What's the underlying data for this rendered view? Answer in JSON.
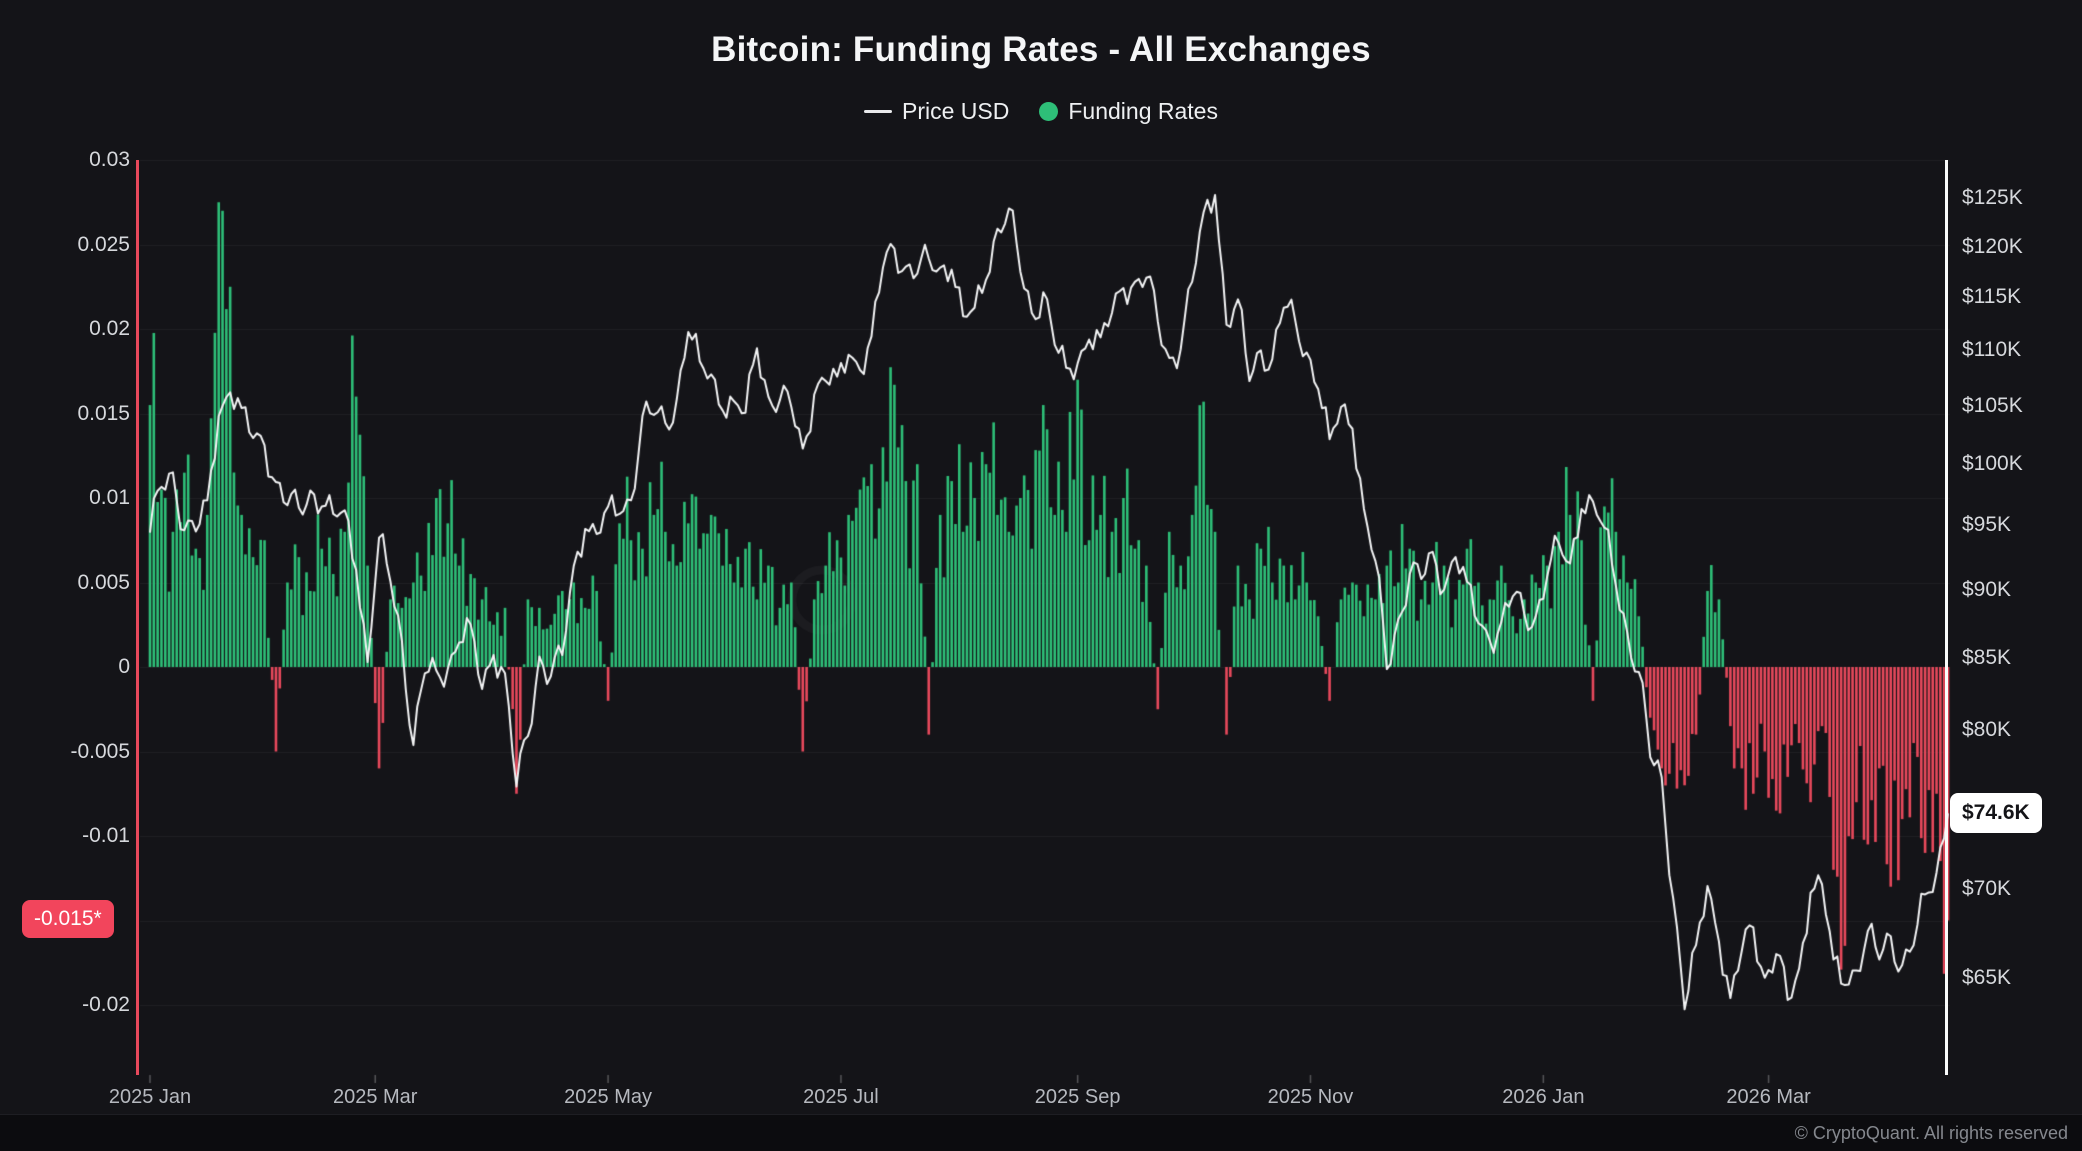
{
  "header": {
    "title": "Bitcoin: Funding Rates - All Exchanges",
    "legend": [
      {
        "icon": "line-dash",
        "label": "Price USD",
        "color": "#e9eaec"
      },
      {
        "icon": "dot",
        "label": "Funding Rates",
        "color": "#2ebf78"
      }
    ]
  },
  "axes": {
    "left": {
      "ticks": [
        {
          "label": "0.03",
          "value": 0.03
        },
        {
          "label": "0.025",
          "value": 0.025
        },
        {
          "label": "0.02",
          "value": 0.02
        },
        {
          "label": "0.015",
          "value": 0.015
        },
        {
          "label": "0.01",
          "value": 0.01
        },
        {
          "label": "0.005",
          "value": 0.005
        },
        {
          "label": "0",
          "value": 0
        },
        {
          "label": "-0.005",
          "value": -0.005
        },
        {
          "label": "-0.01",
          "value": -0.01
        },
        {
          "label": "-0.02",
          "value": -0.02
        }
      ],
      "last": {
        "label": "-0.015*",
        "value": -0.015,
        "color": "#f2455c"
      }
    },
    "right": {
      "ticks": [
        {
          "label": "$125K",
          "value": 125
        },
        {
          "label": "$120K",
          "value": 120
        },
        {
          "label": "$115K",
          "value": 115
        },
        {
          "label": "$110K",
          "value": 110
        },
        {
          "label": "$105K",
          "value": 105
        },
        {
          "label": "$100K",
          "value": 100
        },
        {
          "label": "$95K",
          "value": 95
        },
        {
          "label": "$90K",
          "value": 90
        },
        {
          "label": "$85K",
          "value": 85
        },
        {
          "label": "$80K",
          "value": 80
        },
        {
          "label": "$70K",
          "value": 70
        },
        {
          "label": "$65K",
          "value": 65
        }
      ],
      "last": {
        "label": "$74.6K",
        "value": 74.6
      }
    },
    "x": {
      "ticks": [
        {
          "label": "2025 Jan",
          "day": 0
        },
        {
          "label": "2025 Mar",
          "day": 59
        },
        {
          "label": "2025 May",
          "day": 120
        },
        {
          "label": "2025 Jul",
          "day": 181
        },
        {
          "label": "2025 Sep",
          "day": 243
        },
        {
          "label": "2025 Nov",
          "day": 304
        },
        {
          "label": "2026 Jan",
          "day": 365
        },
        {
          "label": "2026 Mar",
          "day": 424
        }
      ]
    }
  },
  "footer": {
    "copyright": "© CryptoQuant. All rights reserved"
  },
  "colors": {
    "background": "#141418",
    "funding_positive": "#2ebf78",
    "funding_negative": "#e8495c",
    "price_line": "#f4f5f6",
    "grid": "rgba(255,255,255,0.05)",
    "left_axis_line": "#e8495c",
    "right_axis_line": "#fafbfb",
    "left_last_pill_bg": "#f2455c",
    "right_last_pill_bg": "#ffffff"
  },
  "chart_data": {
    "type": "mixed",
    "title": "Bitcoin: Funding Rates - All Exchanges",
    "x_axis": {
      "start_date": "2025-01-01",
      "step_days": 3,
      "end_date": "2026-04-17",
      "grid": false
    },
    "left_axis": {
      "label": "Funding Rates",
      "scale": "linear",
      "range": [
        -0.0225,
        0.03
      ],
      "grid": true
    },
    "right_axis": {
      "label": "Price USD",
      "scale": "log",
      "range_thousand_usd": [
        60,
        129.5
      ],
      "grid": false
    },
    "legend_position": "top-center",
    "series": [
      {
        "name": "Funding Rates",
        "type": "bar",
        "axis": "left",
        "values": [
          0.0155,
          0.0105,
          0.008,
          0.0115,
          0.007,
          0.009,
          0.0275,
          0.0225,
          0.009,
          0.0065,
          0.0075,
          -0.005,
          0.005,
          0.0065,
          0.0045,
          0.007,
          0.0055,
          0.008,
          0.016,
          0.006,
          -0.006,
          0.004,
          0.0035,
          0.005,
          0.0045,
          0.01,
          0.0085,
          0.006,
          0.0055,
          0.004,
          0.0025,
          0.0035,
          -0.0075,
          0.004,
          0.0035,
          0.0025,
          0.0045,
          0.005,
          0.0035,
          0.0045,
          -0.002,
          0.0085,
          0.0075,
          0.007,
          0.009,
          0.008,
          0.006,
          0.0085,
          0.007,
          0.009,
          0.006,
          0.005,
          0.007,
          0.004,
          0.006,
          0.0035,
          0.005,
          -0.005,
          0.004,
          0.006,
          0.0075,
          0.009,
          0.0105,
          0.012,
          0.013,
          0.0167,
          0.011,
          0.012,
          -0.004,
          0.009,
          0.011,
          0.008,
          0.01,
          0.012,
          0.009,
          0.008,
          0.01,
          0.007,
          0.0155,
          0.009,
          0.008,
          0.017,
          0.0075,
          0.009,
          0.008,
          0.01,
          0.007,
          0.006,
          -0.0025,
          0.008,
          0.006,
          0.009,
          0.0157,
          0.008,
          -0.004,
          0.006,
          0.004,
          0.007,
          0.005,
          0.006,
          0.004,
          0.005,
          0.003,
          -0.002,
          0.004,
          0.005,
          0.003,
          0.004,
          0.006,
          0.005,
          0.007,
          0.004,
          0.005,
          0.006,
          0.004,
          0.007,
          0.005,
          0.004,
          0.006,
          0.003,
          0.004,
          0.005,
          0.006,
          0.008,
          0.009,
          0.0075,
          -0.002,
          0.0095,
          0.008,
          0.005,
          0.003,
          -0.003,
          -0.006,
          -0.0045,
          -0.007,
          -0.004,
          0.0045,
          0.004,
          -0.0035,
          -0.006,
          -0.0075,
          -0.005,
          -0.0085,
          -0.0065,
          -0.0045,
          -0.008,
          -0.0035,
          -0.012,
          -0.0165,
          -0.008,
          -0.0105,
          -0.006,
          -0.013,
          -0.009,
          -0.0045,
          -0.011,
          -0.0075,
          -0.015
        ]
      },
      {
        "name": "Price USD",
        "type": "line",
        "axis": "right",
        "unit": "thousand USD",
        "values": [
          94.4,
          98.1,
          99.3,
          94.6,
          94.5,
          97.0,
          104.1,
          106.2,
          104.8,
          102.2,
          101.6,
          98.5,
          96.6,
          96.4,
          97.8,
          96.5,
          95.9,
          96.2,
          91.5,
          84.7,
          94.0,
          90.6,
          86.2,
          79.0,
          83.9,
          84.1,
          84.2,
          86.1,
          87.4,
          82.8,
          85.2,
          83.9,
          76.3,
          79.6,
          85.1,
          83.7,
          85.2,
          91.8,
          94.7,
          94.3,
          96.5,
          95.9,
          97.0,
          104.1,
          104.2,
          103.5,
          105.6,
          111.7,
          109.0,
          107.8,
          104.6,
          105.4,
          104.4,
          110.2,
          105.8,
          105.5,
          104.9,
          101.3,
          106.0,
          107.2,
          107.6,
          109.6,
          108.2,
          111.3,
          117.9,
          119.8,
          118.0,
          117.3,
          118.8,
          117.9,
          117.7,
          113.2,
          114.0,
          116.7,
          121.8,
          123.9,
          117.5,
          113.5,
          115.5,
          110.5,
          108.4,
          108.8,
          111.0,
          111.2,
          113.5,
          115.9,
          116.5,
          116.9,
          112.7,
          109.3,
          110.1,
          116.5,
          123.5,
          125.3,
          112.4,
          114.8,
          107.2,
          110.0,
          109.2,
          114.0,
          112.8,
          109.8,
          106.5,
          102.1,
          104.9,
          103.0,
          96.3,
          92.2,
          84.2,
          87.8,
          91.2,
          90.8,
          92.9,
          90.0,
          92.5,
          90.6,
          87.5,
          86.2,
          87.6,
          89.5,
          88.2,
          88.0,
          91.0,
          93.6,
          92.0,
          96.3,
          96.9,
          94.8,
          90.3,
          86.8,
          84.0,
          78.2,
          76.9,
          69.5,
          63.3,
          66.8,
          70.2,
          67.0,
          63.9,
          66.5,
          67.8,
          65.0,
          66.3,
          63.8,
          65.5,
          69.8,
          70.3,
          66.0,
          64.6,
          65.4,
          67.6,
          66.0,
          67.3,
          65.7,
          66.8,
          69.7,
          71.0,
          74.6
        ]
      }
    ],
    "last_values": {
      "funding": -0.015,
      "price_thousand_usd": 74.6
    }
  }
}
